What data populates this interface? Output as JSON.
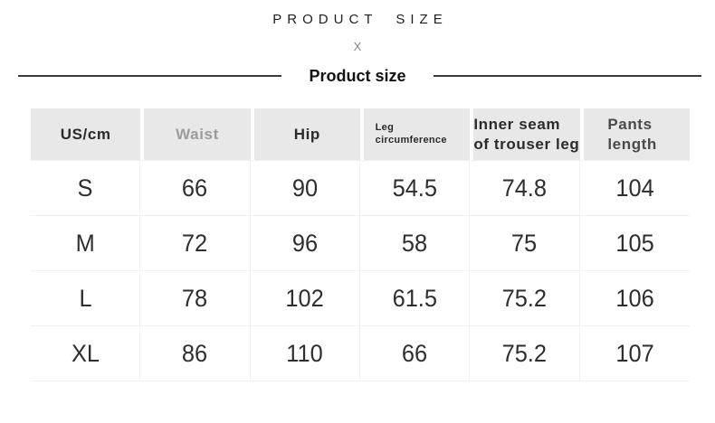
{
  "header": {
    "kicker": "PRODUCT SIZE",
    "divider_mark": "X",
    "section_title": "Product size"
  },
  "table": {
    "columns": [
      {
        "label": "US/cm"
      },
      {
        "label": "Waist"
      },
      {
        "label": "Hip"
      },
      {
        "label": "Leg circumference"
      },
      {
        "label": "Inner seam of trouser leg"
      },
      {
        "label": "Pants length"
      }
    ],
    "rows": [
      {
        "size": "S",
        "waist": "66",
        "hip": "90",
        "leg": "54.5",
        "inner_seam": "74.8",
        "pants_length": "104"
      },
      {
        "size": "M",
        "waist": "72",
        "hip": "96",
        "leg": "58",
        "inner_seam": "75",
        "pants_length": "105"
      },
      {
        "size": "L",
        "waist": "78",
        "hip": "102",
        "leg": "61.5",
        "inner_seam": "75.2",
        "pants_length": "106"
      },
      {
        "size": "XL",
        "waist": "86",
        "hip": "110",
        "leg": "66",
        "inner_seam": "75.2",
        "pants_length": "107"
      }
    ]
  },
  "colors": {
    "header_cell_bg": "#e8e8e8",
    "muted_header_text": "#9c9c9c",
    "dark_text": "#2b2b2b",
    "divider_line": "#3a3a3a",
    "grid_line": "#f1f1f1"
  },
  "chart_data": {
    "type": "table",
    "title": "Product size",
    "subtitle": "PRODUCT SIZE",
    "unit": "cm",
    "columns": [
      "US/cm",
      "Waist",
      "Hip",
      "Leg circumference",
      "Inner seam of trouser leg",
      "Pants length"
    ],
    "rows": [
      [
        "S",
        66,
        90,
        54.5,
        74.8,
        104
      ],
      [
        "M",
        72,
        96,
        58,
        75,
        105
      ],
      [
        "L",
        78,
        102,
        61.5,
        75.2,
        106
      ],
      [
        "XL",
        86,
        110,
        66,
        75.2,
        107
      ]
    ]
  }
}
